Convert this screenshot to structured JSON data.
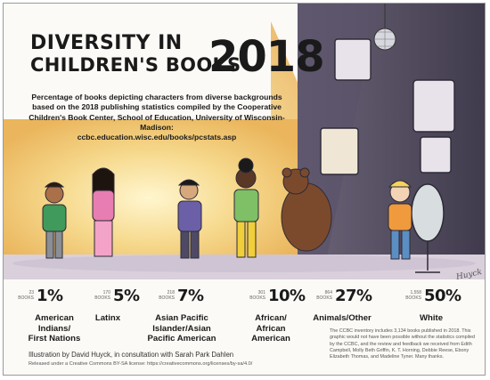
{
  "header": {
    "title_line1": "DIVERSITY IN",
    "title_line2": "CHILDREN'S BOOKS",
    "title_year": "2018",
    "subtitle": "Percentage of books depicting characters from diverse backgrounds based on the 2018 publishing statistics compiled by the Cooperative Children's Book Center, School of Education, University of Wisconsin-Madison:",
    "url": "ccbc.education.wisc.edu/books/pcstats.asp"
  },
  "books_word": "BOOKS",
  "chart_data": {
    "type": "table",
    "title": "DIVERSITY IN CHILDREN'S BOOKS 2018",
    "categories": [
      "American Indians/ First Nations",
      "Latinx",
      "Asian Pacific Islander/Asian Pacific American",
      "African/ African American",
      "Animals/Other",
      "White"
    ],
    "series": [
      {
        "values": [
          1,
          5,
          7,
          10,
          27,
          50
        ],
        "labels": [
          "1%",
          "5%",
          "7%",
          "10%",
          "27%",
          "50%"
        ],
        "books": [
          "23",
          "170",
          "218",
          "301",
          "864",
          "1,558"
        ]
      }
    ]
  },
  "stats": [
    {
      "books": "23",
      "pct": "1%",
      "label": "American\nIndians/\nFirst Nations"
    },
    {
      "books": "170",
      "pct": "5%",
      "label": "Latinx"
    },
    {
      "books": "218",
      "pct": "7%",
      "label": "Asian Pacific\nIslander/Asian\nPacific American"
    },
    {
      "books": "301",
      "pct": "10%",
      "label": "African/\nAfrican\nAmerican"
    },
    {
      "books": "864",
      "pct": "27%",
      "label": "Animals/Other"
    },
    {
      "books": "1,558",
      "pct": "50%",
      "label": "White"
    }
  ],
  "footer": {
    "note": "The CCBC inventory includes 3,134 books published in 2018. This graphic would not have been possible without the statistics compiled by the CCBC, and the review and feedback we received from Edith Campbell, Molly Beth Griffin, K. T. Horning, Debbie Reese, Ebony Elizabeth Thomas, and Madeline Tyner. Many thanks.",
    "credit": "Illustration by David Huyck, in consultation with Sarah Park Dahlen",
    "license": "Released under a Creative Commons BY-SA license: https://creativecommons.org/licenses/by-sa/4.0/",
    "signature": "Huyck"
  },
  "colors": {
    "wall_left": "#f0c774",
    "wall_glow": "#fff6cf",
    "wall_dark": "#4a4457",
    "floor": "#bfb5c8",
    "ink": "#1a1a1a"
  }
}
